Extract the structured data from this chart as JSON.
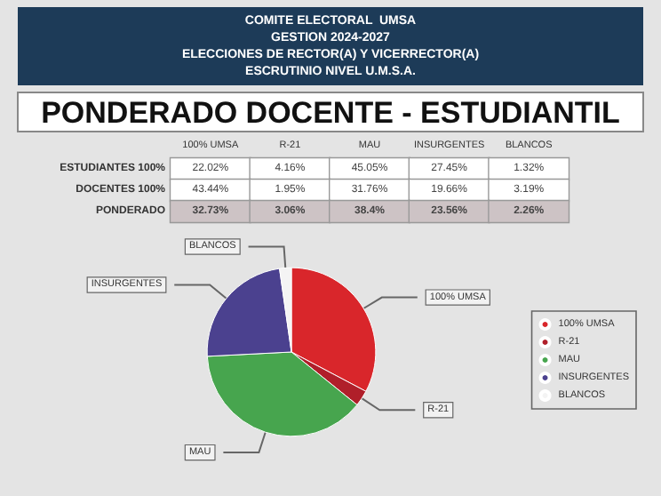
{
  "chart_data": [
    {
      "type": "heatmap",
      "title": "PONDERADO DOCENTE - ESTUDIANTIL",
      "annotations": [
        "COMITE ELECTORAL  UMSA",
        "GESTION 2024-2027",
        "ELECCIONES DE RECTOR(A) Y VICERRECTOR(A)",
        "ESCRUTINIO NIVEL U.M.S.A."
      ],
      "categories": [
        "100% UMSA",
        "R-21",
        "MAU",
        "INSURGENTES",
        "BLANCOS"
      ],
      "y_categories": [
        "ESTUDIANTES 100%",
        "DOCENTES 100%",
        "PONDERADO"
      ],
      "cells": [
        [
          22.02,
          4.16,
          45.05,
          27.45,
          1.32
        ],
        [
          43.44,
          1.95,
          31.76,
          19.66,
          3.19
        ],
        [
          32.73,
          3.06,
          38.4,
          23.56,
          2.26
        ]
      ],
      "cell_labels": [
        [
          "22.02%",
          "4.16%",
          "45.05%",
          "27.45%",
          "1.32%"
        ],
        [
          "43.44%",
          "1.95%",
          "31.76%",
          "19.66%",
          "3.19%"
        ],
        [
          "32.73%",
          "3.06%",
          "38.4%",
          "23.56%",
          "2.26%"
        ]
      ]
    },
    {
      "type": "pie",
      "categories": [
        "100% UMSA",
        "R-21",
        "MAU",
        "INSURGENTES",
        "BLANCOS"
      ],
      "values": [
        32.73,
        3.06,
        38.4,
        23.56,
        2.26
      ],
      "colors": [
        "#d9262b",
        "#b01f2a",
        "#47a54e",
        "#4b418f",
        "#f4f4f4"
      ],
      "legend": "right"
    }
  ]
}
